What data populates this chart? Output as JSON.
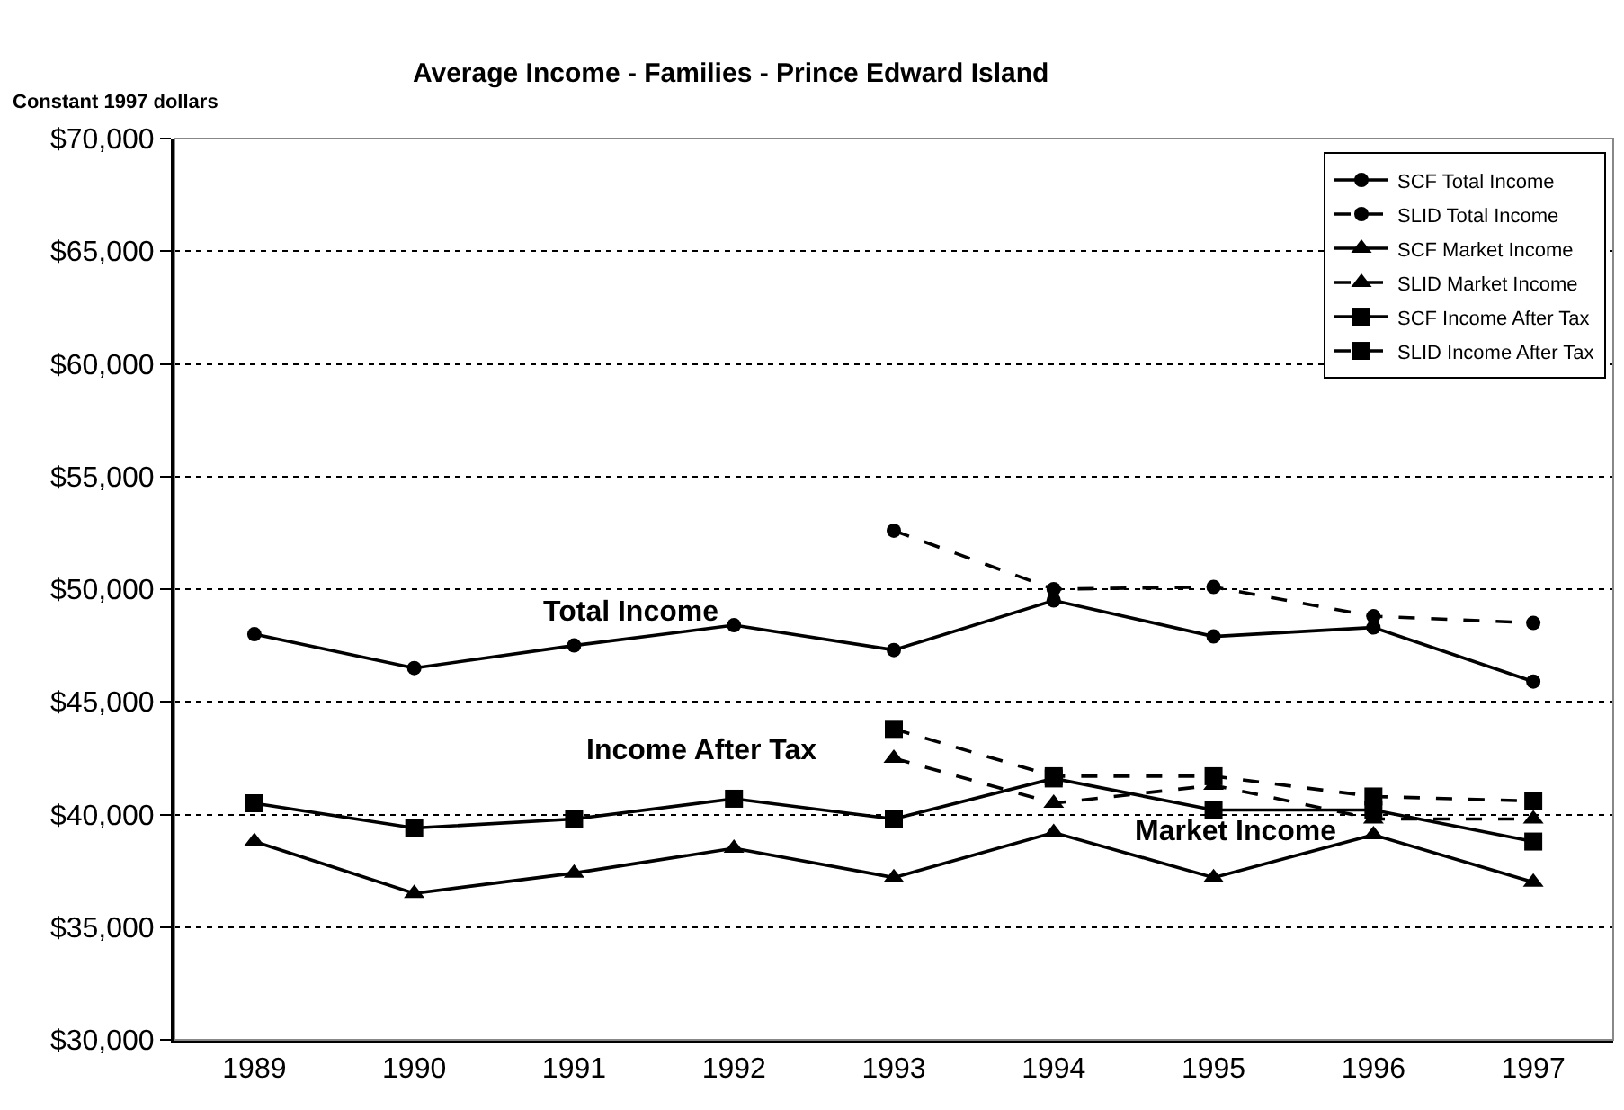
{
  "chart_data": {
    "type": "line",
    "title": "Average Income - Families - Prince Edward Island",
    "ylabel": "Constant 1997 dollars",
    "categories": [
      "1989",
      "1990",
      "1991",
      "1992",
      "1993",
      "1994",
      "1995",
      "1996",
      "1997"
    ],
    "series": [
      {
        "name": "SCF Total Income",
        "color": "#000000",
        "marker": "circle",
        "line_style": "solid",
        "values": [
          48000,
          46500,
          47500,
          48400,
          47300,
          49500,
          47900,
          48300,
          45900
        ]
      },
      {
        "name": "SLID Total Income",
        "color": "#000000",
        "marker": "circle",
        "line_style": "dashed",
        "values": [
          null,
          null,
          null,
          null,
          52600,
          50000,
          50100,
          48800,
          48500
        ]
      },
      {
        "name": "SCF Market Income",
        "color": "#000000",
        "marker": "triangle",
        "line_style": "solid",
        "values": [
          38800,
          36500,
          37400,
          38500,
          37200,
          39200,
          37200,
          39100,
          37000
        ]
      },
      {
        "name": "SLID Market Income",
        "color": "#000000",
        "marker": "triangle",
        "line_style": "dashed",
        "values": [
          null,
          null,
          null,
          null,
          42500,
          40500,
          41300,
          39800,
          39800
        ]
      },
      {
        "name": "SCF Income After Tax",
        "color": "#000000",
        "marker": "square",
        "line_style": "solid",
        "values": [
          40500,
          39400,
          39800,
          40700,
          39800,
          41600,
          40200,
          40200,
          38800
        ]
      },
      {
        "name": "SLID Income After Tax",
        "color": "#000000",
        "marker": "square",
        "line_style": "dashed",
        "values": [
          null,
          null,
          null,
          null,
          43800,
          41700,
          41700,
          40800,
          40600
        ]
      }
    ],
    "ylim": [
      30000,
      70000
    ],
    "yticks": [
      {
        "value": 30000,
        "label": "$30,000"
      },
      {
        "value": 35000,
        "label": "$35,000"
      },
      {
        "value": 40000,
        "label": "$40,000"
      },
      {
        "value": 45000,
        "label": "$45,000"
      },
      {
        "value": 50000,
        "label": "$50,000"
      },
      {
        "value": 55000,
        "label": "$55,000"
      },
      {
        "value": 60000,
        "label": "$60,000"
      },
      {
        "value": 65000,
        "label": "$65,000"
      },
      {
        "value": 70000,
        "label": "$70,000"
      }
    ],
    "grid": "y",
    "legend": "top right",
    "annotations": [
      "Total Income",
      "Income After Tax",
      "Market Income"
    ]
  }
}
